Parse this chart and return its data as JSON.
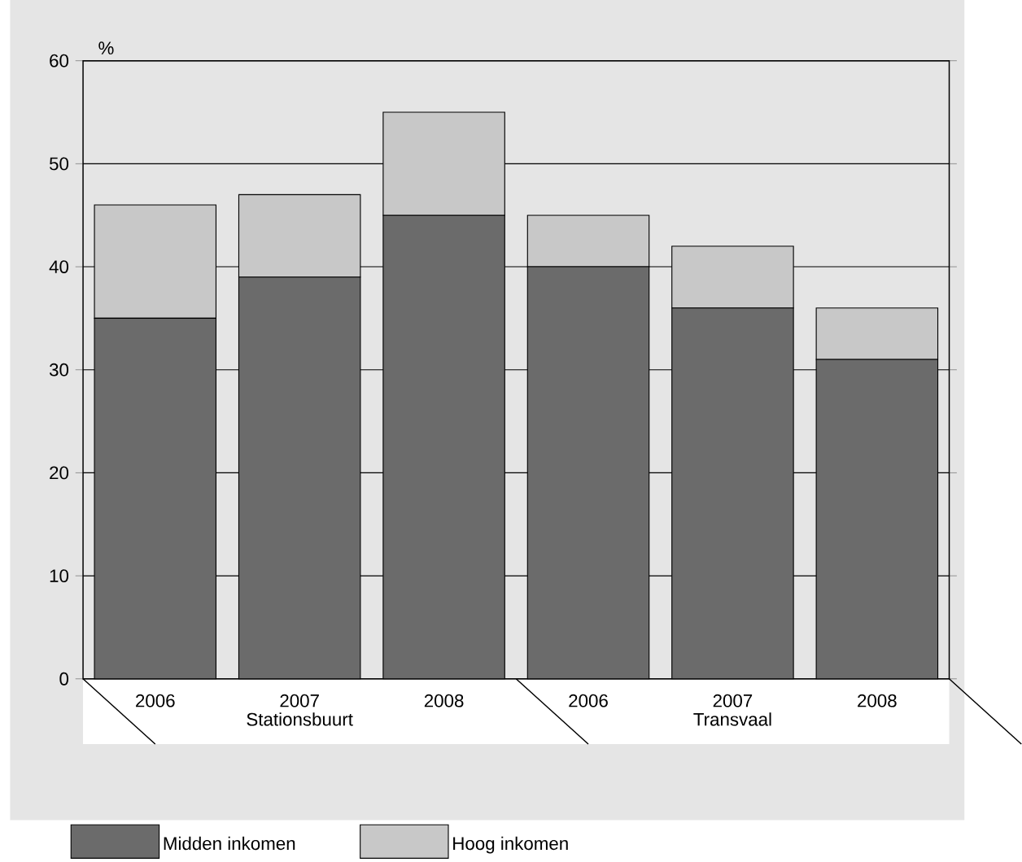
{
  "chart_data": {
    "type": "bar",
    "stacked": true,
    "ylabel": "%",
    "categories": [
      "2006",
      "2007",
      "2008",
      "2006",
      "2007",
      "2008"
    ],
    "annotations": [
      "Stationsbuurt",
      "Transvaal"
    ],
    "series": [
      {
        "name": "Midden inkomen",
        "color": "#6b6b6b",
        "values": [
          35,
          39,
          45,
          40,
          36,
          31
        ]
      },
      {
        "name": "Hoog inkomen",
        "color": "#c8c8c8",
        "values": [
          11,
          8,
          10,
          5,
          6,
          5
        ]
      }
    ],
    "ylim": [
      0,
      60
    ],
    "yticks": [
      0,
      10,
      20,
      30,
      40,
      50,
      60
    ],
    "grid": "y",
    "legend": "bottom"
  }
}
